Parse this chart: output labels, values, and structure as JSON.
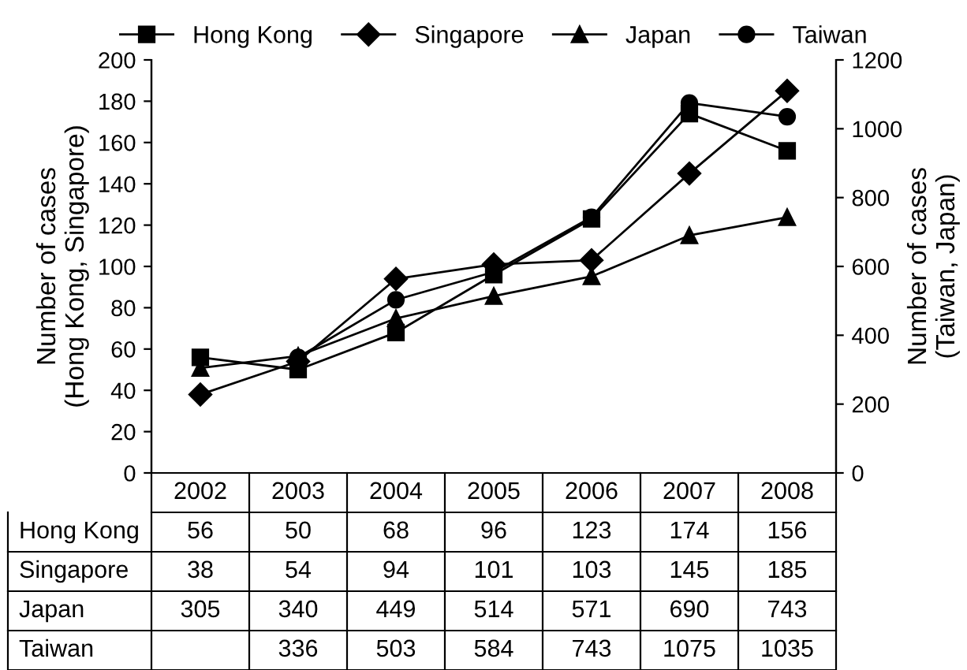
{
  "chart_data": {
    "type": "line",
    "categories": [
      "2002",
      "2003",
      "2004",
      "2005",
      "2006",
      "2007",
      "2008"
    ],
    "ylabel": "Number of cases\n(Hong Kong, Singapore)",
    "y2label": "Number of cases\n(Taiwan, Japan)",
    "ylim": [
      0,
      200
    ],
    "yticks": [
      0,
      20,
      40,
      60,
      80,
      100,
      120,
      140,
      160,
      180,
      200
    ],
    "y2lim": [
      0,
      1200
    ],
    "y2ticks": [
      0,
      200,
      400,
      600,
      800,
      1000,
      1200
    ],
    "legend": "top",
    "grid": false,
    "data_labels": true,
    "series": [
      {
        "name": "Hong Kong",
        "color": "#000000",
        "marker": "square",
        "values": [
          56,
          50,
          68,
          96,
          123,
          174,
          156
        ]
      },
      {
        "name": "Singapore",
        "color": "#000000",
        "marker": "diamond",
        "values": [
          38,
          54,
          94,
          101,
          103,
          145,
          185
        ]
      },
      {
        "name": "Japan",
        "color": "#000000",
        "marker": "triangle",
        "axis": "y2",
        "values": [
          305,
          340,
          449,
          514,
          571,
          690,
          743
        ]
      },
      {
        "name": "Taiwan",
        "color": "#000000",
        "marker": "circle",
        "axis": "y2",
        "values": [
          null,
          336,
          503,
          584,
          743,
          1075,
          1035
        ]
      }
    ]
  }
}
